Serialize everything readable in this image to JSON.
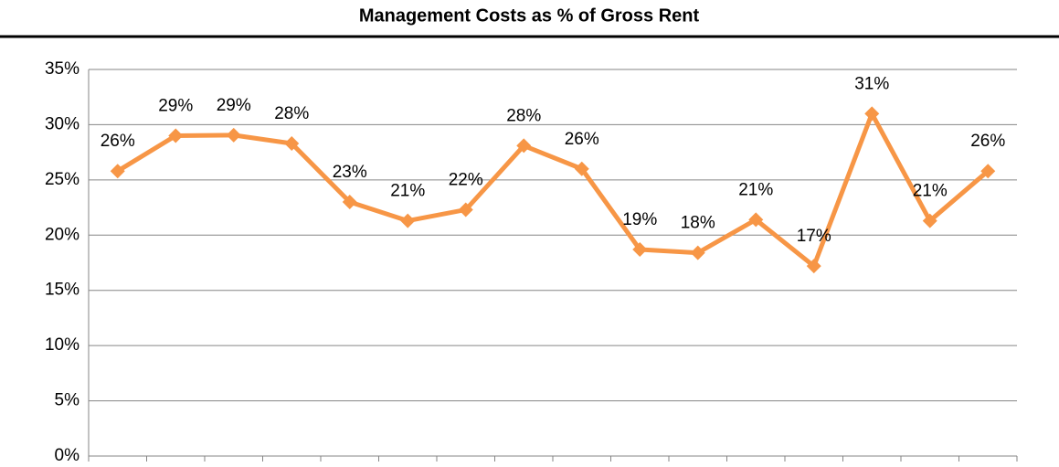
{
  "chart_data": {
    "type": "line",
    "title": "Management Costs as % of Gross Rent",
    "categories": [
      null,
      null,
      null,
      null,
      null,
      null,
      null,
      null,
      null,
      null,
      null,
      null,
      null,
      null,
      null,
      null
    ],
    "series": [
      {
        "name": "Management Costs",
        "color": "#f79646",
        "values": [
          25.8,
          29.0,
          29.05,
          28.3,
          23.0,
          21.3,
          22.3,
          28.1,
          26.0,
          18.7,
          18.4,
          21.4,
          17.2,
          31.0,
          21.3,
          25.8
        ],
        "value_labels": [
          "26%",
          "29%",
          "29%",
          "28%",
          "23%",
          "21%",
          "22%",
          "28%",
          "26%",
          "19%",
          "18%",
          "21%",
          "17%",
          "31%",
          "21%",
          "26%"
        ]
      }
    ],
    "ylim": [
      0,
      35
    ],
    "yticks": [
      {
        "value": 0,
        "label": "0%"
      },
      {
        "value": 5,
        "label": "5%"
      },
      {
        "value": 10,
        "label": "10%"
      },
      {
        "value": 15,
        "label": "15%"
      },
      {
        "value": 20,
        "label": "20%"
      },
      {
        "value": 25,
        "label": "25%"
      },
      {
        "value": 30,
        "label": "30%"
      },
      {
        "value": 35,
        "label": "35%"
      }
    ],
    "grid": true
  }
}
